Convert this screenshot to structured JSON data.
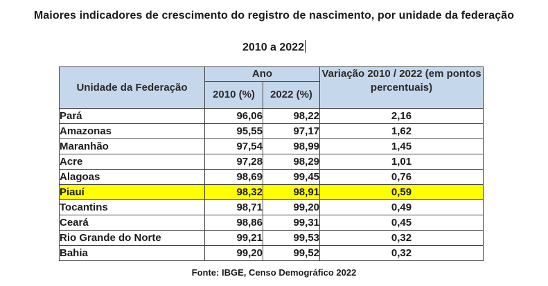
{
  "title": "Maiores indicadores de crescimento do registro de nascimento, por unidade da federação",
  "subtitle": "2010 a 2022",
  "table": {
    "header": {
      "uf": "Unidade da Federação",
      "ano": "Ano",
      "y2010": "2010 (%)",
      "y2022": "2022 (%)",
      "variacao": "Variação 2010 / 2022 (em pontos percentuais)"
    },
    "rows": [
      {
        "uf": "Pará",
        "v2010": "96,06",
        "v2022": "98,22",
        "var": "2,16"
      },
      {
        "uf": "Amazonas",
        "v2010": "95,55",
        "v2022": "97,17",
        "var": "1,62"
      },
      {
        "uf": "Maranhão",
        "v2010": "97,54",
        "v2022": "98,99",
        "var": "1,45"
      },
      {
        "uf": "Acre",
        "v2010": "97,28",
        "v2022": "98,29",
        "var": "1,01"
      },
      {
        "uf": "Alagoas",
        "v2010": "98,69",
        "v2022": "99,45",
        "var": "0,76"
      },
      {
        "uf": "Piauí",
        "v2010": "98,32",
        "v2022": "98,91",
        "var": "0,59"
      },
      {
        "uf": "Tocantins",
        "v2010": "98,71",
        "v2022": "99,20",
        "var": "0,49"
      },
      {
        "uf": "Ceará",
        "v2010": "98,86",
        "v2022": "99,31",
        "var": "0,45"
      },
      {
        "uf": "Rio Grande do Norte",
        "v2010": "99,21",
        "v2022": "99,53",
        "var": "0,32"
      },
      {
        "uf": "Bahia",
        "v2010": "99,20",
        "v2022": "99,52",
        "var": "0,32"
      }
    ],
    "highlight_color": "#ffff00",
    "header_color": "#c5d7ea"
  },
  "source": "Fonte: IBGE, Censo Demográfico 2022"
}
